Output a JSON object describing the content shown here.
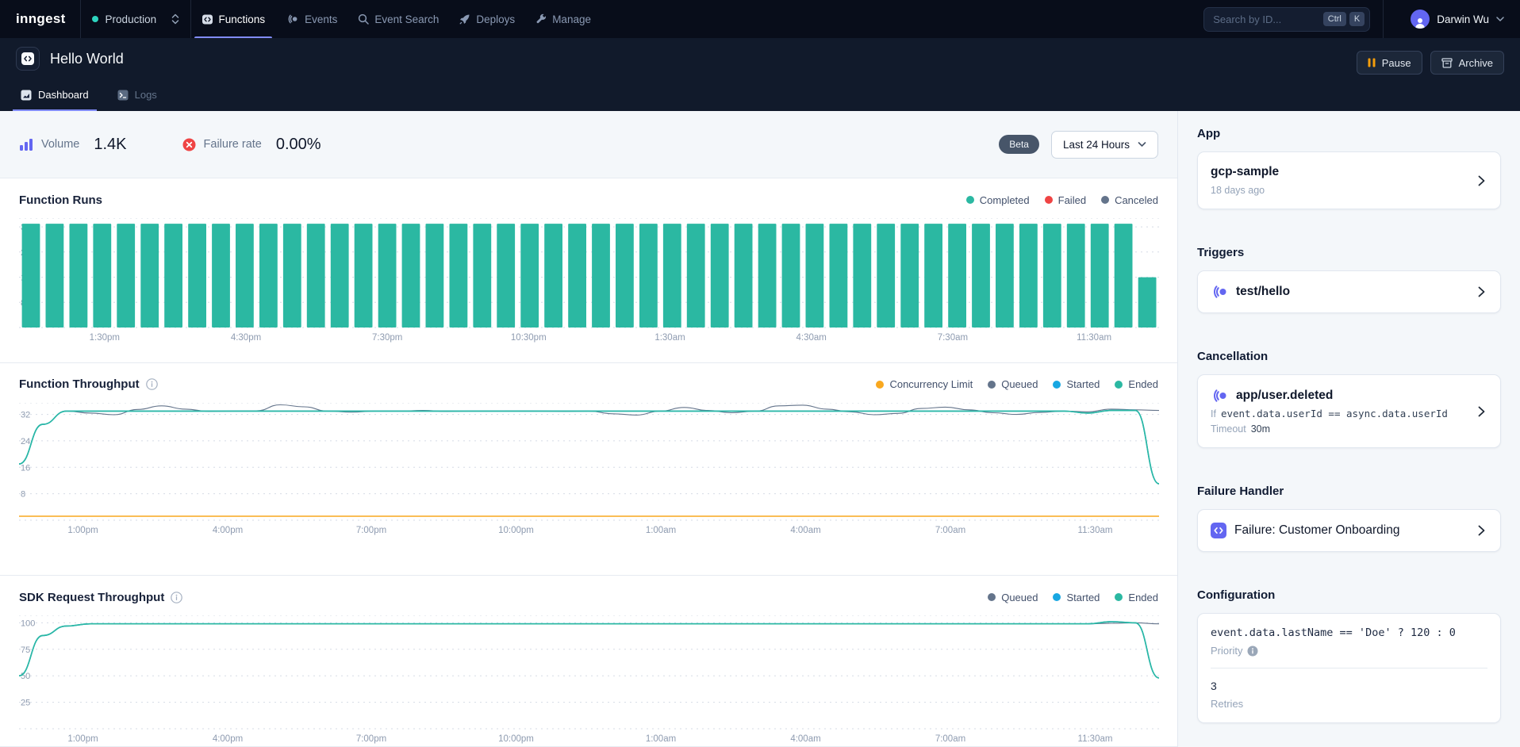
{
  "nav": {
    "logo": "inngest",
    "env": "Production",
    "items": [
      {
        "label": "Functions",
        "active": true
      },
      {
        "label": "Events"
      },
      {
        "label": "Event Search"
      },
      {
        "label": "Deploys"
      },
      {
        "label": "Manage"
      }
    ],
    "search_placeholder": "Search by ID...",
    "keys": [
      "Ctrl",
      "K"
    ],
    "user": "Darwin Wu"
  },
  "header": {
    "title": "Hello World",
    "tabs": [
      {
        "label": "Dashboard",
        "active": true
      },
      {
        "label": "Logs"
      }
    ],
    "pause_label": "Pause",
    "archive_label": "Archive"
  },
  "stats": {
    "volume_label": "Volume",
    "volume": "1.4K",
    "failure_label": "Failure rate",
    "failure": "0.00%",
    "beta": "Beta",
    "range": "Last 24 Hours"
  },
  "sidebar": {
    "app": {
      "heading": "App",
      "name": "gcp-sample",
      "age": "18 days ago"
    },
    "triggers": {
      "heading": "Triggers",
      "name": "test/hello"
    },
    "cancellation": {
      "heading": "Cancellation",
      "name": "app/user.deleted",
      "if_label": "If",
      "expression": "event.data.userId == async.data.userId",
      "timeout_label": "Timeout",
      "timeout": "30m"
    },
    "failure": {
      "heading": "Failure Handler",
      "name": "Failure: Customer Onboarding"
    },
    "config": {
      "heading": "Configuration",
      "priority_expr": "event.data.lastName == 'Doe' ? 120 : 0",
      "priority_label": "Priority",
      "retries": "3",
      "retries_label": "Retries"
    }
  },
  "colors": {
    "teal": "#2bb8a2",
    "red": "#ef4444",
    "slate": "#64748b",
    "blue": "#18a7e2",
    "orange": "#f9a81f",
    "indigo": "#6366f1",
    "accent_underline": "#818cf8",
    "grid": "#d5dbe5",
    "tick_text": "#8e9bb0"
  },
  "chart_data": [
    {
      "type": "bar",
      "title": "Function Runs",
      "legend": [
        {
          "label": "Completed",
          "color": "#2bb8a2"
        },
        {
          "label": "Failed",
          "color": "#ef4444"
        },
        {
          "label": "Canceled",
          "color": "#64748b"
        }
      ],
      "bar_color": "#2bb8a2",
      "ylim": [
        0,
        34.8
      ],
      "yticks": [
        8,
        16,
        24,
        32
      ],
      "values": [
        33,
        33,
        33,
        33,
        33,
        33,
        33,
        33,
        33,
        33,
        33,
        33,
        33,
        33,
        33,
        33,
        33,
        33,
        33,
        33,
        33,
        33,
        33,
        33,
        33,
        33,
        33,
        33,
        33,
        33,
        33,
        33,
        33,
        33,
        33,
        33,
        33,
        33,
        33,
        33,
        33,
        33,
        33,
        33,
        33,
        33,
        33,
        16
      ],
      "xticks": {
        "labels": [
          "1:30pm",
          "4:30pm",
          "7:30pm",
          "10:30pm",
          "1:30am",
          "4:30am",
          "7:30am",
          "11:30am"
        ],
        "fractions": [
          0.075,
          0.199,
          0.323,
          0.447,
          0.571,
          0.695,
          0.819,
          0.943
        ]
      }
    },
    {
      "type": "line",
      "title": "Function Throughput",
      "legend": [
        {
          "label": "Concurrency Limit",
          "color": "#f9a81f"
        },
        {
          "label": "Queued",
          "color": "#64748b"
        },
        {
          "label": "Started",
          "color": "#18a7e2"
        },
        {
          "label": "Ended",
          "color": "#2bb8a2"
        }
      ],
      "ylim": [
        0,
        35.5
      ],
      "yticks": [
        8,
        16,
        24,
        32
      ],
      "limit_line": {
        "label": "Concurrency Limit",
        "color": "#f9a81f",
        "value": 1.2
      },
      "series": [
        {
          "name": "Queued",
          "color": "#64748b",
          "width": 1.1,
          "values": [
            17,
            29,
            33,
            32.4,
            31.9,
            33.5,
            34.6,
            33.6,
            32.9,
            33,
            33.1,
            34.9,
            34.3,
            33,
            32.7,
            33,
            33,
            33.2,
            32.9,
            33,
            33,
            33.1,
            33,
            32.9,
            33,
            32.2,
            31.8,
            33,
            34.1,
            33.2,
            32.5,
            33,
            34.6,
            34.8,
            33.6,
            32.8,
            31.9,
            32.3,
            33.8,
            34.2,
            33.4,
            32.5,
            32,
            32.6,
            33,
            32.8,
            33.6,
            33.4,
            33.2
          ]
        },
        {
          "name": "Started",
          "color": "#18a7e2",
          "width": 1.6,
          "values": [
            17,
            29,
            33,
            33,
            33,
            33,
            33,
            33,
            33,
            33,
            33,
            33,
            33,
            33,
            33,
            33,
            33,
            33,
            33,
            33,
            33,
            33,
            33,
            33,
            33,
            33,
            33,
            33,
            33,
            33,
            33,
            33,
            33,
            33,
            33,
            33,
            33,
            33,
            33,
            33,
            33,
            33,
            33,
            33,
            33,
            32.4,
            33.2,
            33.2,
            11
          ]
        },
        {
          "name": "Ended",
          "color": "#2bb8a2",
          "width": 1.6,
          "values": [
            17,
            29,
            33,
            33,
            33,
            33,
            33,
            33,
            33,
            33,
            33,
            33,
            33,
            33,
            33,
            33,
            33,
            33,
            33,
            33,
            33,
            33,
            33,
            33,
            33,
            33,
            33,
            33,
            33,
            33,
            33,
            33,
            33,
            33,
            33,
            33,
            33,
            33,
            33,
            33,
            33,
            33,
            33,
            33,
            33,
            32.4,
            33.2,
            33.2,
            11
          ]
        }
      ],
      "xticks": {
        "labels": [
          "1:00pm",
          "4:00pm",
          "7:00pm",
          "10:00pm",
          "1:00am",
          "4:00am",
          "7:00am",
          "11:30am"
        ],
        "fractions": [
          0.056,
          0.183,
          0.309,
          0.436,
          0.563,
          0.69,
          0.817,
          0.944
        ]
      }
    },
    {
      "type": "line",
      "title": "SDK Request Throughput",
      "legend": [
        {
          "label": "Queued",
          "color": "#64748b"
        },
        {
          "label": "Started",
          "color": "#18a7e2"
        },
        {
          "label": "Ended",
          "color": "#2bb8a2"
        }
      ],
      "ylim": [
        0,
        107
      ],
      "yticks": [
        25,
        50,
        75,
        100
      ],
      "series": [
        {
          "name": "Queued",
          "color": "#64748b",
          "width": 1.1,
          "values": [
            50,
            88,
            97,
            99,
            99,
            99,
            99,
            99,
            99,
            99,
            99,
            99,
            99,
            99,
            99,
            99,
            99,
            99,
            99,
            99,
            99,
            99,
            99,
            99,
            99,
            99,
            99,
            99,
            99,
            99,
            99,
            99,
            99,
            99,
            99,
            99,
            99,
            99,
            99,
            99,
            99,
            99,
            99,
            99,
            99,
            99,
            99.5,
            100,
            99
          ]
        },
        {
          "name": "Started",
          "color": "#18a7e2",
          "width": 1.6,
          "values": [
            50,
            88,
            97,
            99,
            99,
            99,
            99,
            99,
            99,
            99,
            99,
            99,
            99,
            99,
            99,
            99,
            99,
            99,
            99,
            99,
            99,
            99,
            99,
            99,
            99,
            99,
            99,
            99,
            99,
            99,
            99,
            99,
            99,
            99,
            99,
            99,
            99,
            99,
            99,
            99,
            99,
            99,
            99,
            99,
            99,
            99,
            101,
            100,
            48
          ]
        },
        {
          "name": "Ended",
          "color": "#2bb8a2",
          "width": 1.6,
          "values": [
            50,
            88,
            97,
            99,
            99,
            99,
            99,
            99,
            99,
            99,
            99,
            99,
            99,
            99,
            99,
            99,
            99,
            99,
            99,
            99,
            99,
            99,
            99,
            99,
            99,
            99,
            99,
            99,
            99,
            99,
            99,
            99,
            99,
            99,
            99,
            99,
            99,
            99,
            99,
            99,
            99,
            99,
            99,
            99,
            99,
            99,
            101,
            100,
            48
          ]
        }
      ],
      "xticks": {
        "labels": [
          "1:00pm",
          "4:00pm",
          "7:00pm",
          "10:00pm",
          "1:00am",
          "4:00am",
          "7:00am",
          "11:30am"
        ],
        "fractions": [
          0.056,
          0.183,
          0.309,
          0.436,
          0.563,
          0.69,
          0.817,
          0.944
        ]
      }
    }
  ]
}
